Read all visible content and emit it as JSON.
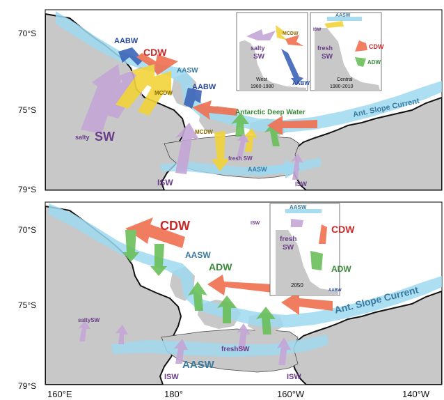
{
  "latitude_labels": {
    "top_panel": [
      "70°S",
      "75°S",
      "79°S"
    ],
    "bottom_panel": [
      "70°S",
      "75°S",
      "79°S"
    ]
  },
  "longitude_labels": [
    "160°E",
    "180°",
    "160°W",
    "140°W"
  ],
  "top_panel": {
    "labels": {
      "aabw_west": "AABW",
      "cdw": "CDW",
      "aasw_mid": "AASW",
      "aabw_mid": "AABW",
      "mcdw_a": "MCDW",
      "mcdw_b": "MCDW",
      "salty": "salty",
      "sw": "SW",
      "antarctic_deep_water": "Antarctic Deep Water",
      "ant_slope_current": "Ant. Slope Current",
      "fresh_sw": "fresh SW",
      "aasw_bottom": "AASW",
      "isw_left": "ISW",
      "isw_right": "ISW"
    },
    "inset_west": {
      "salty": "salty",
      "sw": "SW",
      "mcdw": "MCDW",
      "aabw": "AABW",
      "caption_line1": "West",
      "caption_line2": "1960-1980"
    },
    "inset_central": {
      "aasw": "AASW",
      "isw": "ISW",
      "fresh": "fresh",
      "sw": "SW",
      "cdw": "CDW",
      "adw": "ADW",
      "caption_line1": "Central",
      "caption_line2": "1980-2010"
    }
  },
  "bottom_panel": {
    "labels": {
      "cdw": "CDW",
      "aasw_upper": "AASW",
      "adw": "ADW",
      "ant_slope_current": "Ant. Slope Current",
      "salty_sw": "saltySW",
      "fresh_sw": "freshSW",
      "aasw_lower": "AASW",
      "isw_left": "ISW",
      "isw_right": "ISW"
    },
    "inset": {
      "aasw": "AASW",
      "isw": "ISW",
      "fresh": "fresh",
      "sw": "SW",
      "cdw": "CDW",
      "adw": "ADW",
      "year": "2050",
      "aabw": "AABW"
    }
  },
  "colors": {
    "land": "#c8c8c8",
    "sea": "#ffffff",
    "current": "#9fd9f0",
    "cdw_arrow": "#f07050",
    "aabw_arrow": "#3c64b8",
    "mcdw_arrow": "#f2d33a",
    "sw_arrow": "#c4a6d6",
    "adw_arrow": "#6abf5a",
    "label_red": "#c82828",
    "label_blue": "#2a4b9a",
    "label_green": "#3a8a3a",
    "label_purple": "#6a3d8a",
    "label_teal": "#3a7aa0"
  }
}
